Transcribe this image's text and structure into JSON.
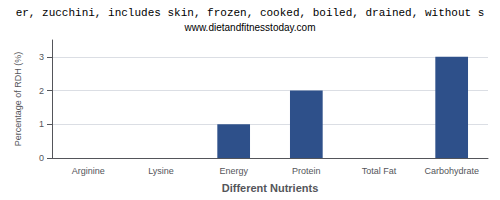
{
  "chart_data": {
    "type": "bar",
    "title": "er, zucchini, includes skin, frozen, cooked, boiled, drained, without s",
    "subtitle": "www.dietandfitnesstoday.com",
    "categories": [
      "Arginine",
      "Lysine",
      "Energy",
      "Protein",
      "Total Fat",
      "Carbohydrate"
    ],
    "values": [
      0.0,
      0.0,
      1.0,
      2.0,
      0.0,
      3.0
    ],
    "color": "#2E508A",
    "xlabel": "Different Nutrients",
    "ylabel": "Percentage of RDH (%)",
    "ylim": [
      0,
      3.5
    ],
    "yticks": [
      0,
      1,
      2,
      3
    ],
    "grid": true
  }
}
